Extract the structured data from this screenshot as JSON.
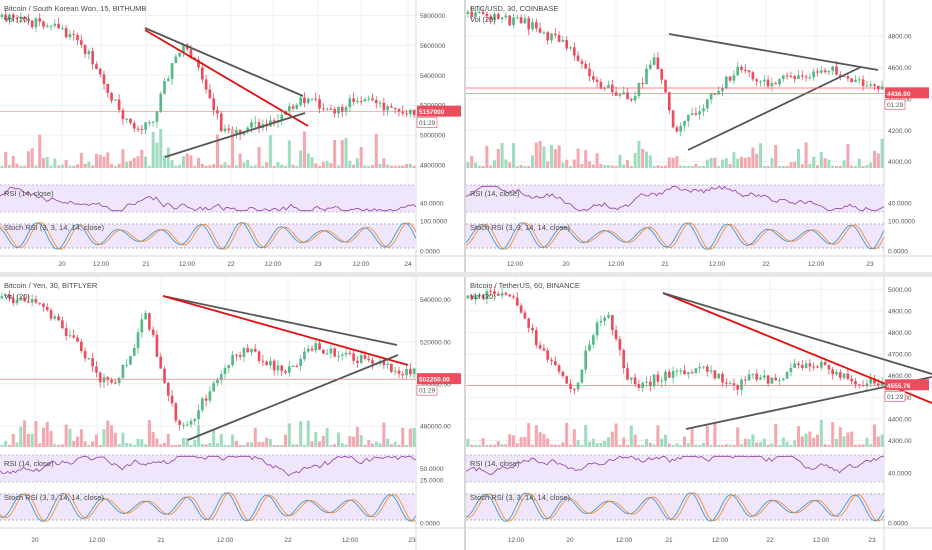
{
  "colors": {
    "up": "#53b987",
    "down": "#eb4d5c",
    "vol_up": "#9fdcbf",
    "vol_down": "#f3a7ae",
    "pane_bg": "#f0e6fb",
    "rsi_line": "#8e3fa0",
    "stoch_k": "#2e8fcf",
    "stoch_d": "#f08a24",
    "trend_red": "#e01010",
    "trend_gray": "#555555",
    "price_line": "#e86a6a"
  },
  "panels": [
    {
      "id": "bithumb",
      "title": "Bitcoin / South Korean Won, 15, BITHUMB",
      "vol_label": "Vol (20)",
      "rsi_label": "RSI (14, close)",
      "stoch_label": "Stoch RSI (3, 3, 14, 14, close)",
      "price_ticks": [
        "5800000",
        "5600000",
        "5400000",
        "5200000",
        "5000000",
        "4800000"
      ],
      "price_tick_values": [
        5800000,
        5600000,
        5400000,
        5200000,
        5000000,
        4800000
      ],
      "price_range": [
        4780000,
        5850000
      ],
      "price_tag": "5157000",
      "price_value": 5157000,
      "time_tag": "01:29",
      "rsi_ticks": [
        "40.0000"
      ],
      "rsi_tick_values": [
        40
      ],
      "stoch_ticks": [
        "100.0000",
        "0.0000"
      ],
      "stoch_tick_values": [
        100,
        0
      ],
      "time_ticks": [
        "20",
        "12:00",
        "21",
        "12:00",
        "22",
        "12:00",
        "23",
        "12:00",
        "24"
      ],
      "seed": 11
    },
    {
      "id": "coinbase",
      "title": "BTC/USD, 30, COINBASE",
      "vol_label": "Vol (20)",
      "rsi_label": "RSI (14, close)",
      "stoch_label": "Stoch RSI (3, 3, 14, 14, close)",
      "price_ticks": [
        "4800.00",
        "4600.00",
        "4400.00",
        "4200.00",
        "4000.00"
      ],
      "price_tick_values": [
        4800,
        4600,
        4400,
        4200,
        4000
      ],
      "price_range": [
        3960,
        4980
      ],
      "price_tag": "4436.00",
      "price_value": 4436,
      "time_tag": "01:29",
      "rsi_ticks": [
        "40.0000"
      ],
      "rsi_tick_values": [
        40
      ],
      "stoch_ticks": [
        "100.0000",
        "0.0000"
      ],
      "stoch_tick_values": [
        100,
        0
      ],
      "time_ticks": [
        "12:00",
        "20",
        "12:00",
        "21",
        "12:00",
        "22",
        "12:00",
        "23"
      ],
      "seed": 23
    },
    {
      "id": "bitflyer",
      "title": "Bitcoin / Yen, 30, BITFLYER",
      "vol_label": "Vol (20)",
      "rsi_label": "RSI (14, close)",
      "stoch_label": "Stoch RSI (3, 3, 14, 14, close)",
      "price_ticks": [
        "540000.00",
        "520000.00",
        "500000.00",
        "480000.00"
      ],
      "price_tick_values": [
        540000,
        520000,
        500000,
        480000
      ],
      "price_range": [
        470000,
        547000
      ],
      "price_tag": "502250.00",
      "price_value": 502250,
      "time_tag": "01:29",
      "rsi_ticks": [
        "50.0000",
        "25.0000"
      ],
      "rsi_tick_values": [
        50,
        25
      ],
      "stoch_ticks": [
        "0.0000"
      ],
      "stoch_tick_values": [
        0
      ],
      "time_ticks": [
        "20",
        "12:00",
        "21",
        "12:00",
        "22",
        "12:00",
        "23"
      ],
      "seed": 37
    },
    {
      "id": "binance",
      "title": "Bitcoin / TetherUS, 60, BINANCE",
      "vol_label": "Vol (20)",
      "rsi_label": "RSI (14, close)",
      "stoch_label": "Stoch RSI (3, 3, 14, 14, close)",
      "price_ticks": [
        "5000.00",
        "4900.00",
        "4800.00",
        "4700.00",
        "4600.00",
        "4500.00",
        "4400.00",
        "4300.00"
      ],
      "price_tick_values": [
        5000,
        4900,
        4800,
        4700,
        4600,
        4500,
        4400,
        4300
      ],
      "price_range": [
        4270,
        5020
      ],
      "price_tag": "4555.76",
      "price_value": 4555.76,
      "time_tag": "01:29",
      "rsi_ticks": [
        "40.0000"
      ],
      "rsi_tick_values": [
        40
      ],
      "stoch_ticks": [
        "0.0000"
      ],
      "stoch_tick_values": [
        0
      ],
      "time_ticks": [
        "12:00",
        "20",
        "12:00",
        "21",
        "12:00",
        "22",
        "12:00",
        "23"
      ],
      "seed": 53
    }
  ]
}
